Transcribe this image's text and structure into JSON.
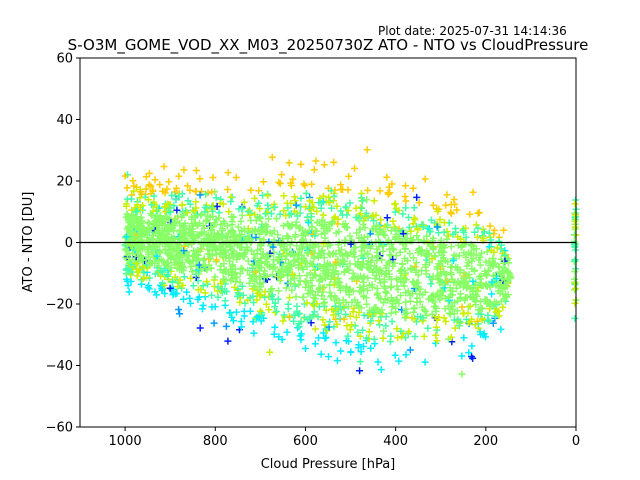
{
  "plot_date": "Plot date: 2025-07-31 14:14:36",
  "chart_data": {
    "type": "scatter",
    "title": "S-O3M_GOME_VOD_XX_M03_20250730Z ATO - NTO vs CloudPressure",
    "xlabel": "Cloud Pressure [hPa]",
    "ylabel": "ATO - NTO [DU]",
    "xlim": [
      1100,
      0
    ],
    "ylim": [
      -60,
      60
    ],
    "x_reversed": true,
    "xticks": [
      1000,
      800,
      600,
      400,
      200,
      0
    ],
    "yticks": [
      -60,
      -40,
      -20,
      0,
      20,
      40,
      60
    ],
    "xtick_labels": [
      "1000",
      "800",
      "600",
      "400",
      "200",
      "0"
    ],
    "ytick_labels": [
      "−60",
      "−40",
      "−20",
      "0",
      "20",
      "40",
      "60"
    ],
    "reference_line_y": 0,
    "marker": "+",
    "grid": false,
    "colors": [
      "#0022ee",
      "#0099ff",
      "#00eeff",
      "#44ffaa",
      "#88ff66",
      "#ccee00",
      "#ffcc00"
    ],
    "series": [
      {
        "values_description_core": [
          {
            "x": 1000,
            "y_range": [
              -20,
              28
            ]
          },
          {
            "x": 900,
            "y_range": [
              -25,
              30
            ]
          },
          {
            "x": 800,
            "y_range": [
              -30,
              32
            ]
          },
          {
            "x": 700,
            "y_range": [
              -38,
              35
            ]
          },
          {
            "x": 600,
            "y_range": [
              -45,
              38
            ]
          },
          {
            "x": 500,
            "y_range": [
              -48,
              38
            ]
          },
          {
            "x": 400,
            "y_range": [
              -50,
              35
            ]
          },
          {
            "x": 300,
            "y_range": [
              -48,
              30
            ]
          },
          {
            "x": 200,
            "y_range": [
              -40,
              20
            ]
          },
          {
            "x": 150,
            "y_range": [
              -28,
              8
            ]
          },
          {
            "x": 0,
            "y_range": [
              -25,
              15
            ]
          }
        ]
      }
    ]
  }
}
